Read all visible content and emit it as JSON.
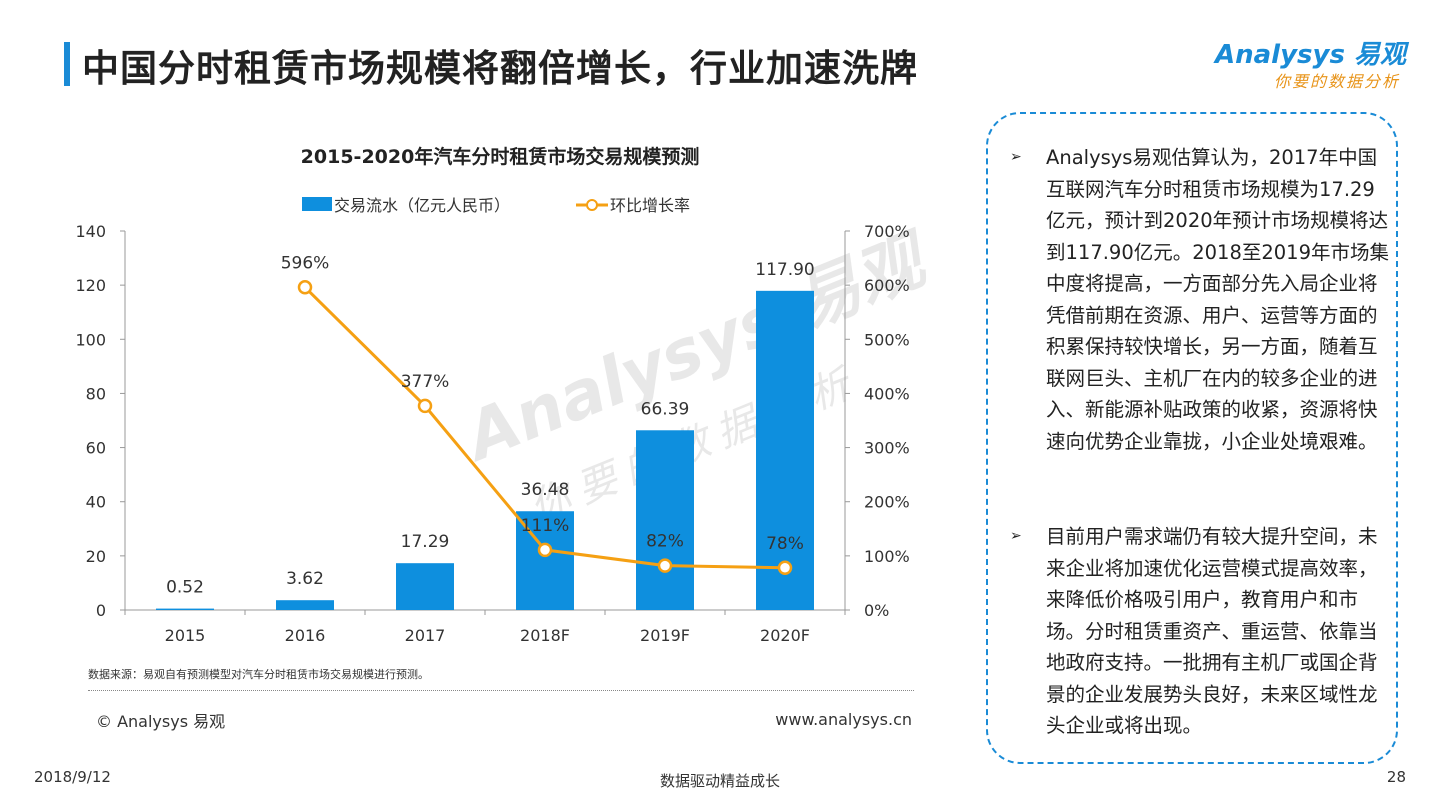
{
  "page": {
    "title": "中国分时租赁市场规模将翻倍增长，行业加速洗牌",
    "logo_brand": "Analysys 易观",
    "logo_slogan": "你要的数据分析",
    "watermark": "Analysys 易观",
    "watermark_slogan": "你要的数据分析",
    "source_note": "数据来源：易观自有预测模型对汽车分时租赁市场交易规模进行预测。",
    "copyright": "© Analysys 易观",
    "website": "www.analysys.cn",
    "footer_date": "2018/9/12",
    "footer_center": "数据驱动精益成长",
    "footer_page": "28"
  },
  "insights": [
    "Analysys易观估算认为，2017年中国互联网汽车分时租赁市场规模为17.29亿元，预计到2020年预计市场规模将达到117.90亿元。2018至2019年市场集中度将提高，一方面部分先入局企业将凭借前期在资源、用户、运营等方面的积累保持较快增长，另一方面，随着互联网巨头、主机厂在内的较多企业的进入、新能源补贴政策的收紧，资源将快速向优势企业靠拢，小企业处境艰难。",
    "目前用户需求端仍有较大提升空间，未来企业将加速优化运营模式提高效率，来降低价格吸引用户，教育用户和市场。分时租赁重资产、重运营、依靠当地政府支持。一批拥有主机厂或国企背景的企业发展势头良好，未来区域性龙头企业或将出现。"
  ],
  "chart_data": {
    "type": "bar",
    "title": "2015-2020年汽车分时租赁市场交易规模预测",
    "categories": [
      "2015",
      "2016",
      "2017",
      "2018F",
      "2019F",
      "2020F"
    ],
    "series": [
      {
        "name": "交易流水（亿元人民币）",
        "type": "bar",
        "axis": "left",
        "values": [
          0.52,
          3.62,
          17.29,
          36.48,
          66.39,
          117.9
        ],
        "labels": [
          "0.52",
          "3.62",
          "17.29",
          "36.48",
          "66.39",
          "117.90"
        ],
        "color": "#0e8fde"
      },
      {
        "name": "环比增长率",
        "type": "line",
        "axis": "right",
        "x": [
          "2016",
          "2017",
          "2018F",
          "2019F",
          "2020F"
        ],
        "values": [
          596,
          377,
          111,
          82,
          78
        ],
        "labels": [
          "596%",
          "377%",
          "111%",
          "82%",
          "78%"
        ],
        "color": "#f5a013"
      }
    ],
    "y_left": {
      "min": 0,
      "max": 140,
      "ticks": [
        "0",
        "20",
        "40",
        "60",
        "80",
        "100",
        "120",
        "140"
      ]
    },
    "y_right": {
      "min": 0,
      "max": 700,
      "ticks": [
        "0%",
        "100%",
        "200%",
        "300%",
        "400%",
        "500%",
        "600%",
        "700%"
      ]
    },
    "legend_position": "top",
    "grid": false
  }
}
